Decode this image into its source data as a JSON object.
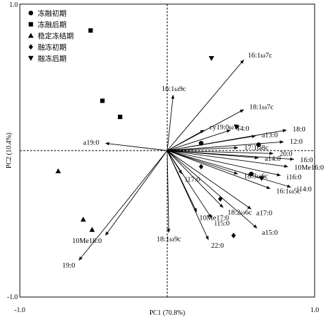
{
  "chart_data": {
    "type": "scatter",
    "xlabel": "PC1 (70.8%)",
    "ylabel": "PC2 (10.4%)",
    "xlim": [
      -1.0,
      1.0
    ],
    "ylim": [
      -1.0,
      1.0
    ],
    "x_ticks": [
      "-1.0",
      "1.0"
    ],
    "y_ticks": [
      "1.0",
      "-1.0"
    ],
    "legend_position": "top-left",
    "series": [
      {
        "name": "冻融初期",
        "marker": "circle",
        "points": [
          [
            0.23,
            0.05
          ],
          [
            0.62,
            0.04
          ],
          [
            0.57,
            -0.16
          ]
        ]
      },
      {
        "name": "冻融后期",
        "marker": "square",
        "points": [
          [
            -0.52,
            0.82
          ],
          [
            -0.44,
            0.34
          ],
          [
            -0.32,
            0.23
          ]
        ]
      },
      {
        "name": "稳定冻结期",
        "marker": "triangle",
        "points": [
          [
            -0.74,
            -0.14
          ],
          [
            -0.57,
            -0.47
          ],
          [
            -0.51,
            -0.54
          ]
        ]
      },
      {
        "name": "融冻初期",
        "marker": "diamond",
        "points": [
          [
            0.23,
            -0.11
          ],
          [
            0.36,
            -0.33
          ],
          [
            0.45,
            -0.58
          ]
        ]
      },
      {
        "name": "融冻后期",
        "marker": "triangle-down",
        "points": [
          [
            0.3,
            0.63
          ],
          [
            0.47,
            0.16
          ],
          [
            0.64,
            -0.19
          ]
        ]
      }
    ],
    "vectors": [
      {
        "label": "16:1ω7c",
        "x": 0.52,
        "y": 0.62
      },
      {
        "label": "16:1ω9c",
        "x": 0.04,
        "y": 0.38
      },
      {
        "label": "18:1ω7c",
        "x": 0.52,
        "y": 0.28
      },
      {
        "label": "cy19:0ω7c",
        "x": 0.25,
        "y": 0.14
      },
      {
        "label": "14:0",
        "x": 0.43,
        "y": 0.14
      },
      {
        "label": "a13:0",
        "x": 0.6,
        "y": 0.1
      },
      {
        "label": "18:0",
        "x": 0.81,
        "y": 0.14
      },
      {
        "label": "12:0",
        "x": 0.79,
        "y": 0.06
      },
      {
        "label": "20:0",
        "x": 0.72,
        "y": -0.02
      },
      {
        "label": "17:1ω8c",
        "x": 0.48,
        "y": 0.02
      },
      {
        "label": "a14:0",
        "x": 0.62,
        "y": -0.05
      },
      {
        "label": "16:0",
        "x": 0.86,
        "y": -0.06
      },
      {
        "label": "10Me16:0",
        "x": 0.82,
        "y": -0.11
      },
      {
        "label": "i16:0",
        "x": 0.77,
        "y": -0.17
      },
      {
        "label": "i14:0",
        "x": 0.84,
        "y": -0.25
      },
      {
        "label": "18:3ω6c",
        "x": 0.48,
        "y": -0.16
      },
      {
        "label": "16:1ω5c",
        "x": 0.7,
        "y": -0.26
      },
      {
        "label": "i17:0",
        "x": 0.1,
        "y": -0.16
      },
      {
        "label": "18:2ω6c",
        "x": 0.38,
        "y": -0.39
      },
      {
        "label": "a17:0",
        "x": 0.57,
        "y": -0.4
      },
      {
        "label": "10Me17:0",
        "x": 0.2,
        "y": -0.42
      },
      {
        "label": "i15:0",
        "x": 0.3,
        "y": -0.46
      },
      {
        "label": "a15:0",
        "x": 0.61,
        "y": -0.53
      },
      {
        "label": "22:0",
        "x": 0.28,
        "y": -0.61
      },
      {
        "label": "18:1ω9c",
        "x": 0.01,
        "y": -0.56
      },
      {
        "label": "a19:0",
        "x": -0.42,
        "y": 0.05
      },
      {
        "label": "10Me18:0",
        "x": -0.42,
        "y": -0.58
      },
      {
        "label": "19:0",
        "x": -0.6,
        "y": -0.75
      }
    ],
    "grid": false
  }
}
